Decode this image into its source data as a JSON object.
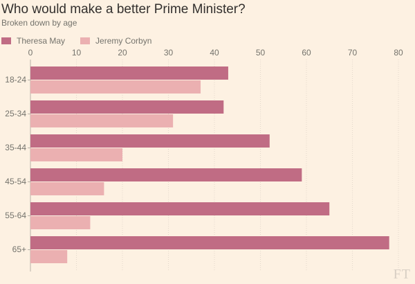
{
  "header": {
    "title": "Who would make a better Prime Minister?",
    "subtitle": "Broken down by age"
  },
  "colors": {
    "background": "#fdf1e2",
    "may": "#c06c84",
    "corbyn": "#ebb0b1",
    "grid": "#e3d8cb",
    "text": "#74736c"
  },
  "watermark": "FT",
  "chart_data": {
    "type": "bar",
    "orientation": "horizontal",
    "title": "Who would make a better Prime Minister?",
    "subtitle": "Broken down by age",
    "categories": [
      "18-24",
      "25-34",
      "35-44",
      "45-54",
      "55-64",
      "65+"
    ],
    "series": [
      {
        "name": "Theresa May",
        "color": "#c06c84",
        "values": [
          43,
          42,
          52,
          59,
          65,
          78
        ]
      },
      {
        "name": "Jeremy Corbyn",
        "color": "#ebb0b1",
        "values": [
          37,
          31,
          20,
          16,
          13,
          8
        ]
      }
    ],
    "xlim": [
      0,
      80
    ],
    "xticks": [
      0,
      10,
      20,
      30,
      40,
      50,
      60,
      70,
      80
    ],
    "x_axis_position": "top",
    "grid": true,
    "legend_position": "top-left"
  }
}
